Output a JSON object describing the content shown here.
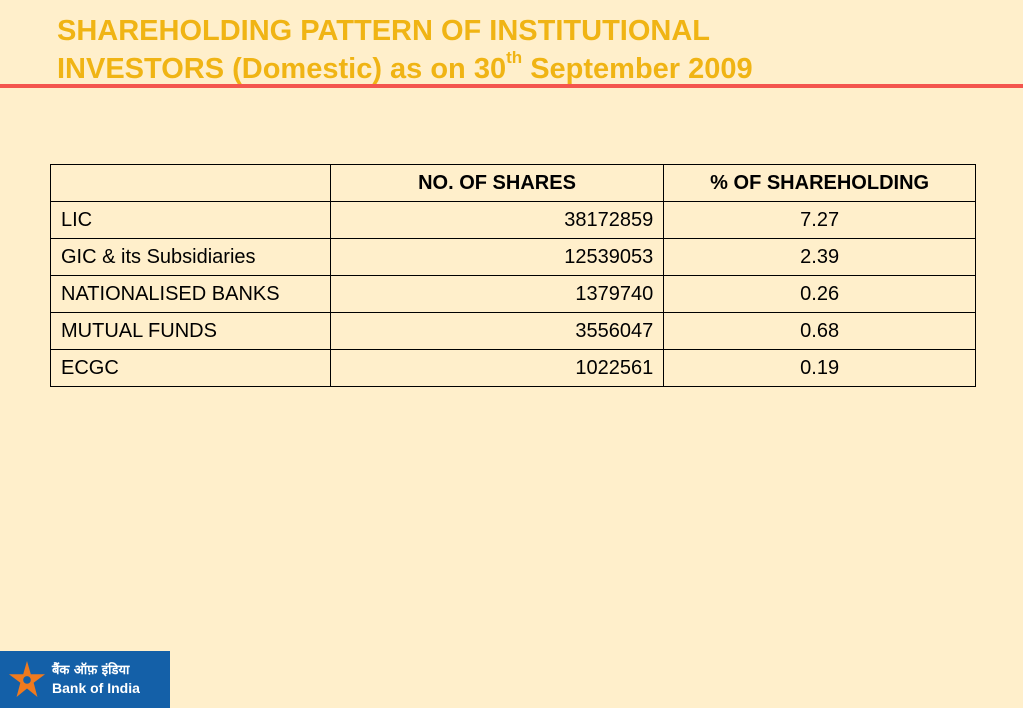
{
  "title": {
    "line1": "SHAREHOLDING PATTERN OF INSTITUTIONAL",
    "line2_before": "INVESTORS (Domestic) as on 30",
    "line2_sup": "th",
    "line2_after": " September 2009"
  },
  "colors": {
    "background": "#FFEFCB",
    "title": "#F0B414",
    "rule": "#F4554E",
    "logo_bg": "#1460A8",
    "logo_star": "#F07A1E"
  },
  "table": {
    "headers": [
      "",
      "NO. OF SHARES",
      "% OF SHAREHOLDING"
    ],
    "rows": [
      {
        "name": "LIC",
        "shares": "38172859",
        "pct": "7.27"
      },
      {
        "name": "GIC & its Subsidiaries",
        "shares": "12539053",
        "pct": "2.39"
      },
      {
        "name": "NATIONALISED BANKS",
        "shares": "1379740",
        "pct": "0.26"
      },
      {
        "name": "MUTUAL FUNDS",
        "shares": "3556047",
        "pct": "0.68"
      },
      {
        "name": "ECGC",
        "shares": "1022561",
        "pct": "0.19"
      }
    ]
  },
  "logo": {
    "hindi": "बैंक ऑफ़ इंडिया",
    "english": "Bank of India",
    "icon": "star-icon"
  }
}
